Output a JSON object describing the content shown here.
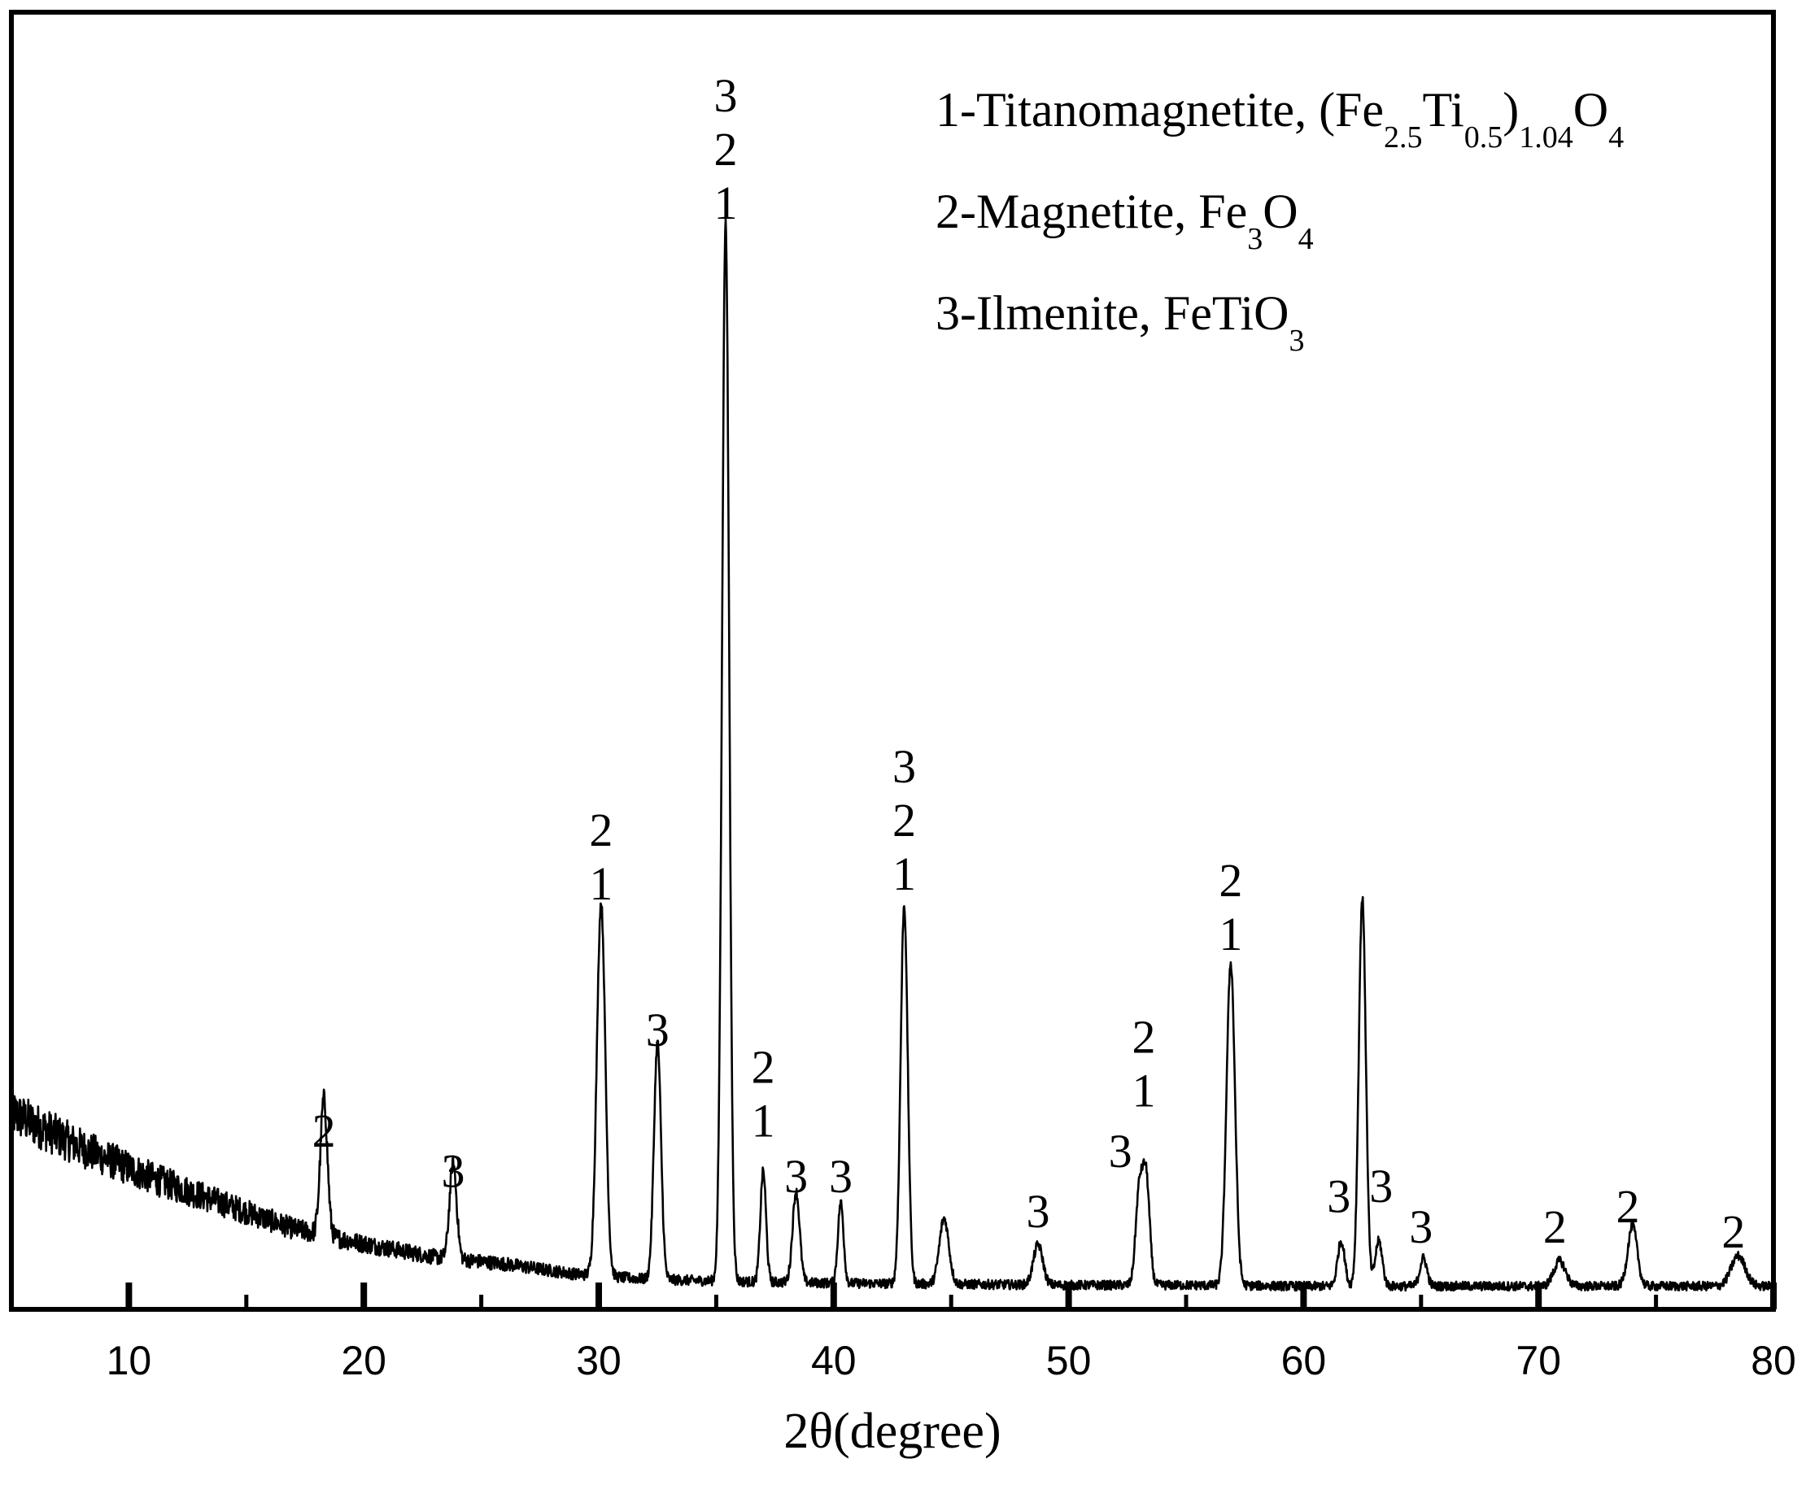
{
  "chart_data": {
    "type": "line",
    "title": "",
    "xlabel": "2θ(degree)",
    "ylabel": "",
    "xlim": [
      5,
      80
    ],
    "ylim": [
      0,
      100
    ],
    "x_ticks_major": [
      10,
      20,
      30,
      40,
      50,
      60,
      70,
      80
    ],
    "x_ticks_minor": [
      15,
      25,
      35,
      45,
      55,
      65,
      75
    ],
    "grid": false,
    "legend_position": "top-right",
    "line_color": "#000000",
    "series": [
      {
        "baseline": [
          [
            5,
            19.5
          ],
          [
            8,
            16
          ],
          [
            11,
            13
          ],
          [
            14,
            10.5
          ],
          [
            17,
            8
          ],
          [
            20,
            6.5
          ],
          [
            23,
            5.2
          ],
          [
            26,
            4.5
          ],
          [
            29,
            3.5
          ],
          [
            32,
            3
          ],
          [
            35,
            2.8
          ],
          [
            40,
            2.6
          ],
          [
            45,
            2.5
          ],
          [
            50,
            2.4
          ],
          [
            55,
            2.4
          ],
          [
            60,
            2.3
          ],
          [
            65,
            2.3
          ],
          [
            70,
            2.3
          ],
          [
            75,
            2.3
          ],
          [
            80,
            2.3
          ]
        ],
        "peaks": [
          {
            "x": 18.3,
            "height": 13.5,
            "width": 0.15
          },
          {
            "x": 23.8,
            "height": 9.5,
            "width": 0.15
          },
          {
            "x": 30.1,
            "height": 37.0,
            "width": 0.18
          },
          {
            "x": 32.5,
            "height": 23.5,
            "width": 0.15
          },
          {
            "x": 35.4,
            "height": 105.0,
            "width": 0.15
          },
          {
            "x": 37.0,
            "height": 11.0,
            "width": 0.12
          },
          {
            "x": 38.4,
            "height": 9.0,
            "width": 0.15
          },
          {
            "x": 40.3,
            "height": 8.0,
            "width": 0.12
          },
          {
            "x": 43.0,
            "height": 37.5,
            "width": 0.15
          },
          {
            "x": 44.7,
            "height": 6.5,
            "width": 0.2
          },
          {
            "x": 48.7,
            "height": 4.0,
            "width": 0.2
          },
          {
            "x": 53.0,
            "height": 9.0,
            "width": 0.15
          },
          {
            "x": 53.3,
            "height": 10.5,
            "width": 0.15
          },
          {
            "x": 56.9,
            "height": 32.0,
            "width": 0.18
          },
          {
            "x": 61.6,
            "height": 4.5,
            "width": 0.15
          },
          {
            "x": 62.5,
            "height": 38.5,
            "width": 0.15
          },
          {
            "x": 63.2,
            "height": 4.5,
            "width": 0.15
          },
          {
            "x": 65.1,
            "height": 2.8,
            "width": 0.15
          },
          {
            "x": 70.9,
            "height": 2.5,
            "width": 0.25
          },
          {
            "x": 74.0,
            "height": 6.0,
            "width": 0.2
          },
          {
            "x": 78.5,
            "height": 3.0,
            "width": 0.3
          }
        ]
      }
    ],
    "peak_annotations": [
      {
        "x": 18.3,
        "y": 15.0,
        "labels": [
          "2"
        ]
      },
      {
        "x": 23.8,
        "y": 11.0,
        "labels": [
          "3"
        ]
      },
      {
        "x": 30.1,
        "y": 39.5,
        "labels": [
          "2",
          "1"
        ]
      },
      {
        "x": 32.5,
        "y": 25.0,
        "labels": [
          "3"
        ]
      },
      {
        "x": 35.4,
        "y": 107.0,
        "labels": [
          "3",
          "2",
          "1"
        ]
      },
      {
        "x": 37.0,
        "y": 16.0,
        "labels": [
          "2",
          "1"
        ]
      },
      {
        "x": 38.4,
        "y": 10.5,
        "labels": [
          "3"
        ]
      },
      {
        "x": 40.3,
        "y": 10.5,
        "labels": [
          "3"
        ]
      },
      {
        "x": 43.0,
        "y": 40.5,
        "labels": [
          "3",
          "2",
          "1"
        ]
      },
      {
        "x": 48.7,
        "y": 7.0,
        "labels": [
          "3"
        ]
      },
      {
        "x": 52.2,
        "y": 13.0,
        "labels": [
          "3"
        ]
      },
      {
        "x": 53.2,
        "y": 19.0,
        "labels": [
          "2",
          "1"
        ]
      },
      {
        "x": 56.9,
        "y": 34.5,
        "labels": [
          "2",
          "1"
        ]
      },
      {
        "x": 61.5,
        "y": 8.5,
        "labels": [
          "3"
        ]
      },
      {
        "x": 63.3,
        "y": 9.5,
        "labels": [
          "3"
        ]
      },
      {
        "x": 65.0,
        "y": 5.5,
        "labels": [
          "3"
        ]
      },
      {
        "x": 70.7,
        "y": 5.5,
        "labels": [
          "2"
        ]
      },
      {
        "x": 73.8,
        "y": 7.5,
        "labels": [
          "2"
        ]
      },
      {
        "x": 78.3,
        "y": 5.0,
        "labels": [
          "2"
        ]
      }
    ],
    "legend": [
      {
        "id": "1",
        "parts": [
          {
            "text": "1-Titanomagnetite, (Fe",
            "sub": false
          },
          {
            "text": "2.5",
            "sub": true
          },
          {
            "text": "Ti",
            "sub": false
          },
          {
            "text": "0.5",
            "sub": true
          },
          {
            "text": ")",
            "sub": false
          },
          {
            "text": "1.04",
            "sub": true
          },
          {
            "text": "O",
            "sub": false
          },
          {
            "text": "4",
            "sub": true
          }
        ]
      },
      {
        "id": "2",
        "parts": [
          {
            "text": "2-Magnetite, Fe",
            "sub": false
          },
          {
            "text": "3",
            "sub": true
          },
          {
            "text": "O",
            "sub": false
          },
          {
            "text": "4",
            "sub": true
          }
        ]
      },
      {
        "id": "3",
        "parts": [
          {
            "text": "3-Ilmenite, FeTiO",
            "sub": false
          },
          {
            "text": "3",
            "sub": true
          }
        ]
      }
    ]
  }
}
